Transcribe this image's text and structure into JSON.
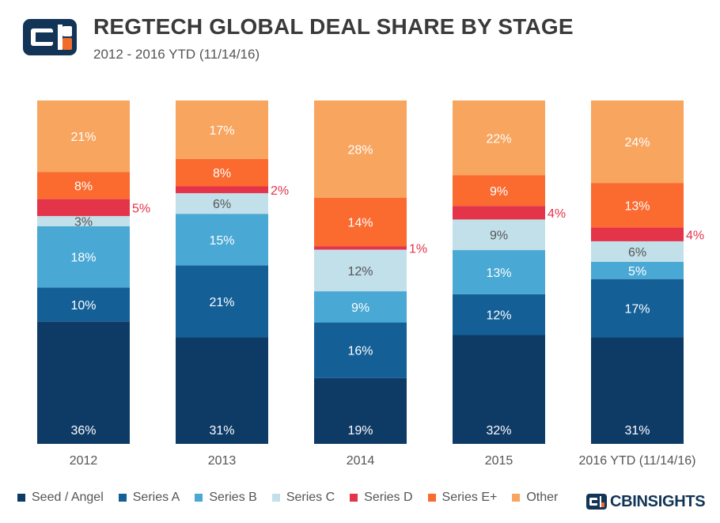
{
  "header": {
    "title": "REGTECH GLOBAL DEAL SHARE BY STAGE",
    "subtitle": "2012 - 2016 YTD (11/14/16)"
  },
  "logos": {
    "top_logo_icon": "cb-insights-mark-icon",
    "brand_icon": "cb-insights-mark-icon",
    "brand_text": "CBINSIGHTS"
  },
  "colors": {
    "seed_angel": "#0e3a66",
    "series_a": "#135f96",
    "series_b": "#4aa8d4",
    "series_c": "#c2e0ea",
    "series_d": "#e3344a",
    "series_e": "#fb6a2f",
    "other": "#f8a55f",
    "axis_text": "#555555",
    "logo_blue": "#123456",
    "logo_orange": "#f26b2a"
  },
  "chart_data": {
    "type": "bar",
    "stacked": true,
    "percent_stacked": true,
    "title": "REGTECH GLOBAL DEAL SHARE BY STAGE",
    "subtitle": "2012 - 2016 YTD (11/14/16)",
    "xlabel": "",
    "ylabel": "",
    "ylim": [
      0,
      100
    ],
    "grid": false,
    "legend_position": "bottom",
    "categories": [
      "2012",
      "2013",
      "2014",
      "2015",
      "2016 YTD (11/14/16)"
    ],
    "series": [
      {
        "name": "Seed / Angel",
        "color_key": "seed_angel",
        "values": [
          36,
          31,
          19,
          32,
          31
        ],
        "labels": [
          "36%",
          "31%",
          "19%",
          "32%",
          "31%"
        ]
      },
      {
        "name": "Series A",
        "color_key": "series_a",
        "values": [
          10,
          21,
          16,
          12,
          17
        ],
        "labels": [
          "10%",
          "21%",
          "16%",
          "12%",
          "17%"
        ]
      },
      {
        "name": "Series B",
        "color_key": "series_b",
        "values": [
          18,
          15,
          9,
          13,
          5
        ],
        "labels": [
          "18%",
          "15%",
          "9%",
          "13%",
          "5%"
        ]
      },
      {
        "name": "Series C",
        "color_key": "series_c",
        "values": [
          3,
          6,
          12,
          9,
          6
        ],
        "labels": [
          "3%",
          "6%",
          "12%",
          "9%",
          "6%"
        ]
      },
      {
        "name": "Series D",
        "color_key": "series_d",
        "values": [
          5,
          2,
          1,
          4,
          4
        ],
        "labels": [
          "5%",
          "2%",
          "1%",
          "4%",
          "4%"
        ]
      },
      {
        "name": "Series E+",
        "color_key": "series_e",
        "values": [
          8,
          8,
          14,
          9,
          13
        ],
        "labels": [
          "8%",
          "8%",
          "14%",
          "9%",
          "13%"
        ]
      },
      {
        "name": "Other",
        "color_key": "other",
        "values": [
          21,
          17,
          28,
          22,
          24
        ],
        "labels": [
          "21%",
          "17%",
          "28%",
          "22%",
          "24%"
        ]
      }
    ]
  }
}
